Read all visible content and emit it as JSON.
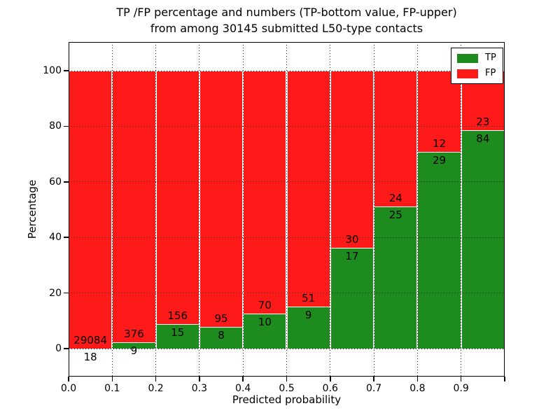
{
  "title": {
    "line1": "TP /FP percentage and numbers (TP-bottom value, FP-upper)",
    "line2": "from among 30145 submitted L50-type contacts"
  },
  "axes": {
    "xlabel": "Predicted probability",
    "ylabel": "Percentage",
    "x_tick_labels": [
      "0.0",
      "0.1",
      "0.2",
      "0.3",
      "0.4",
      "0.5",
      "0.6",
      "0.7",
      "0.8",
      "0.9"
    ],
    "y_tick_labels": [
      "0",
      "20",
      "40",
      "60",
      "80",
      "100"
    ],
    "y_tick_values": [
      0,
      20,
      40,
      60,
      80,
      100
    ],
    "xlim": [
      0.0,
      1.0
    ],
    "ylim": [
      -10.6,
      109.6
    ]
  },
  "legend": {
    "position": "upper right",
    "items": [
      {
        "label": "TP",
        "color": "#1e8b1e"
      },
      {
        "label": "FP",
        "color": "#ff1a1a"
      }
    ]
  },
  "colors": {
    "tp_green": "#1e8b1e",
    "fp_red": "#ff1a1a",
    "background": "#ffffff",
    "grid": "#000000",
    "bar_edge": "#ffffff",
    "text": "#000000"
  },
  "chart_data": {
    "type": "bar",
    "stacked": true,
    "normalized_to_percent": 100,
    "title": "TP /FP percentage and numbers (TP-bottom value, FP-upper) from among 30145 submitted L50-type contacts",
    "xlabel": "Predicted probability",
    "ylabel": "Percentage",
    "total_contacts": 30145,
    "bin_width": 0.1,
    "bin_starts": [
      0.0,
      0.1,
      0.2,
      0.3,
      0.4,
      0.5,
      0.6,
      0.7,
      0.8,
      0.9
    ],
    "series": [
      {
        "name": "TP",
        "color": "#1e8b1e",
        "counts": [
          18,
          9,
          15,
          8,
          10,
          9,
          17,
          25,
          29,
          84
        ],
        "pct": [
          0.06,
          2.34,
          8.77,
          7.77,
          12.5,
          15.0,
          36.17,
          51.02,
          70.73,
          78.5
        ]
      },
      {
        "name": "FP",
        "color": "#ff1a1a",
        "counts": [
          29084,
          376,
          156,
          95,
          70,
          51,
          30,
          24,
          12,
          23
        ],
        "pct": [
          99.94,
          97.66,
          91.23,
          92.23,
          87.5,
          85.0,
          63.83,
          48.98,
          29.27,
          21.5
        ]
      }
    ],
    "label_convention": "TP count below boundary, FP count above boundary",
    "xlim": [
      0.0,
      1.0
    ],
    "ylim": [
      -10.6,
      109.6
    ],
    "legend_position": "upper right",
    "grid": true
  }
}
